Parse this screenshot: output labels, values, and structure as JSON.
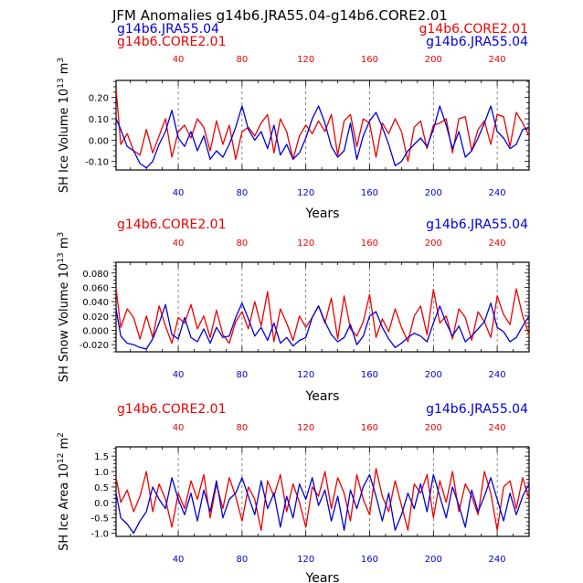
{
  "title": "JFM Anomalies g14b6.JRA55.04-g14b6.CORE2.01",
  "colors": {
    "core": "#ee0000",
    "jra": "#0000dd",
    "axis": "#000000",
    "grid": "#555555"
  },
  "legend": {
    "core_label": "g14b6.CORE2.01",
    "jra_label": "g14b6.JRA55.04"
  },
  "chart_data": [
    {
      "type": "line",
      "title": "SH Ice Volume",
      "ylabel": "SH Ice Volume",
      "ylabel_power": "13",
      "ylabel_unit": "m",
      "ylabel_unit_power": "3",
      "xlabel": "Years",
      "xlim": [
        1,
        260
      ],
      "ylim": [
        -0.14,
        0.28
      ],
      "yticks": [
        -0.1,
        0,
        0.1,
        0.2
      ],
      "ytick_labels": [
        "-0.10",
        "0.00",
        "0.10",
        "0.20"
      ],
      "xticks": [
        40,
        80,
        120,
        160,
        200,
        240
      ],
      "xtick_labels": [
        "40",
        "80",
        "120",
        "160",
        "200",
        "240"
      ],
      "top_tick_labels": [
        "40",
        "80",
        "120",
        "160",
        "200",
        "240"
      ],
      "bottom_tick_labels": [
        "40",
        "80",
        "120",
        "160",
        "200",
        "240"
      ],
      "top_axis_color": "core",
      "bottom_axis_color": "jra",
      "legend_left": "jra_label",
      "legend_left_second": "core_label",
      "legend_right": "core_label",
      "legend_right_second": "jra_label",
      "series": [
        {
          "name": "g14b6.CORE2.01",
          "color": "core",
          "x": [
            1,
            4,
            8,
            12,
            16,
            20,
            24,
            28,
            32,
            36,
            40,
            44,
            48,
            52,
            56,
            60,
            64,
            68,
            72,
            76,
            80,
            84,
            88,
            92,
            96,
            100,
            104,
            108,
            112,
            116,
            120,
            124,
            128,
            132,
            136,
            140,
            144,
            148,
            152,
            156,
            160,
            164,
            168,
            172,
            176,
            180,
            184,
            188,
            192,
            196,
            200,
            204,
            208,
            212,
            216,
            220,
            224,
            228,
            232,
            236,
            240,
            244,
            248,
            252,
            256,
            260
          ],
          "values": [
            0.24,
            -0.02,
            0.03,
            -0.05,
            -0.07,
            0.05,
            -0.06,
            0.02,
            0.1,
            -0.08,
            0.04,
            0.07,
            0.01,
            0.1,
            0.06,
            -0.05,
            0.09,
            -0.02,
            0.07,
            -0.09,
            0.04,
            0.06,
            0.02,
            0.08,
            0.12,
            -0.06,
            0.1,
            0.04,
            -0.09,
            0.02,
            0.07,
            0.03,
            0.09,
            0.04,
            0.12,
            -0.07,
            0.09,
            0.12,
            -0.03,
            0.1,
            0.08,
            -0.08,
            0.08,
            0.03,
            0.1,
            0.04,
            -0.1,
            0.06,
            0.09,
            -0.04,
            0.07,
            0.08,
            0.1,
            -0.06,
            0.1,
            0.11,
            -0.05,
            0.05,
            0.09,
            -0.02,
            0.12,
            0.11,
            -0.03,
            0.13,
            0.08,
            0.02
          ]
        },
        {
          "name": "g14b6.JRA55.04",
          "color": "jra",
          "x": [
            1,
            4,
            8,
            12,
            16,
            20,
            24,
            28,
            32,
            36,
            40,
            44,
            48,
            52,
            56,
            60,
            64,
            68,
            72,
            76,
            80,
            84,
            88,
            92,
            96,
            100,
            104,
            108,
            112,
            116,
            120,
            124,
            128,
            132,
            136,
            140,
            144,
            148,
            152,
            156,
            160,
            164,
            168,
            172,
            176,
            180,
            184,
            188,
            192,
            196,
            200,
            204,
            208,
            212,
            216,
            220,
            224,
            228,
            232,
            236,
            240,
            244,
            248,
            252,
            256,
            260
          ],
          "values": [
            0.1,
            0.05,
            -0.03,
            -0.05,
            -0.11,
            -0.13,
            -0.1,
            -0.02,
            0.04,
            0.14,
            0.01,
            -0.03,
            0.04,
            -0.05,
            0.02,
            -0.09,
            -0.05,
            -0.08,
            -0.02,
            0.06,
            0.16,
            0.05,
            0.0,
            0.04,
            -0.04,
            0.07,
            -0.07,
            -0.02,
            -0.09,
            -0.06,
            0.01,
            0.1,
            0.16,
            0.08,
            -0.03,
            -0.08,
            -0.05,
            0.08,
            -0.09,
            0.02,
            0.09,
            0.13,
            0.06,
            -0.02,
            -0.12,
            -0.1,
            -0.05,
            -0.02,
            0.01,
            -0.03,
            0.05,
            0.16,
            0.07,
            -0.04,
            0.04,
            -0.08,
            -0.05,
            0.01,
            0.08,
            0.16,
            0.04,
            0.01,
            -0.04,
            -0.02,
            0.05,
            0.06
          ]
        }
      ]
    },
    {
      "type": "line",
      "title": "SH Snow Volume",
      "ylabel": "SH Snow Volume",
      "ylabel_power": "13",
      "ylabel_unit": "m",
      "ylabel_unit_power": "3",
      "xlabel": "Years",
      "xlim": [
        1,
        260
      ],
      "ylim": [
        -0.03,
        0.095
      ],
      "yticks": [
        -0.02,
        0,
        0.02,
        0.04,
        0.06,
        0.08
      ],
      "ytick_labels": [
        "-0.020",
        "0.000",
        "0.020",
        "0.040",
        "0.060",
        "0.080"
      ],
      "xticks": [
        40,
        80,
        120,
        160,
        200,
        240
      ],
      "xtick_labels": [
        "40",
        "80",
        "120",
        "160",
        "200",
        "240"
      ],
      "top_tick_labels": [
        "40",
        "80",
        "120",
        "160",
        "200",
        "240"
      ],
      "bottom_tick_labels": [
        "40",
        "80",
        "120",
        "160",
        "200",
        "240"
      ],
      "top_axis_color": "core",
      "bottom_axis_color": "jra",
      "legend_left": "core_label",
      "legend_right": "jra_label",
      "series": [
        {
          "name": "g14b6.CORE2.01",
          "color": "core",
          "x": [
            1,
            4,
            8,
            12,
            16,
            20,
            24,
            28,
            32,
            36,
            40,
            44,
            48,
            52,
            56,
            60,
            64,
            68,
            72,
            76,
            80,
            84,
            88,
            92,
            96,
            100,
            104,
            108,
            112,
            116,
            120,
            124,
            128,
            132,
            136,
            140,
            144,
            148,
            152,
            156,
            160,
            164,
            168,
            172,
            176,
            180,
            184,
            188,
            192,
            196,
            200,
            204,
            208,
            212,
            216,
            220,
            224,
            228,
            232,
            236,
            240,
            244,
            248,
            252,
            256,
            260
          ],
          "values": [
            0.058,
            0.004,
            0.03,
            0.018,
            -0.012,
            0.02,
            -0.01,
            0.034,
            0.006,
            -0.018,
            0.018,
            0.01,
            0.036,
            0.002,
            0.02,
            -0.01,
            0.028,
            -0.006,
            -0.018,
            0.012,
            0.026,
            0.002,
            0.04,
            0.006,
            0.054,
            -0.016,
            0.03,
            0.01,
            -0.014,
            0.02,
            0.004,
            0.018,
            0.034,
            0.01,
            0.045,
            -0.012,
            0.048,
            0.002,
            -0.008,
            0.012,
            0.05,
            -0.01,
            0.016,
            -0.002,
            0.03,
            0.004,
            -0.016,
            0.02,
            0.034,
            -0.006,
            0.057,
            0.01,
            0.02,
            -0.012,
            0.03,
            0.018,
            -0.014,
            0.026,
            0.012,
            -0.01,
            0.048,
            0.022,
            0.008,
            0.058,
            0.02,
            -0.006
          ]
        },
        {
          "name": "g14b6.JRA55.04",
          "color": "jra",
          "x": [
            1,
            4,
            8,
            12,
            16,
            20,
            24,
            28,
            32,
            36,
            40,
            44,
            48,
            52,
            56,
            60,
            64,
            68,
            72,
            76,
            80,
            84,
            88,
            92,
            96,
            100,
            104,
            108,
            112,
            116,
            120,
            124,
            128,
            132,
            136,
            140,
            144,
            148,
            152,
            156,
            160,
            164,
            168,
            172,
            176,
            180,
            184,
            188,
            192,
            196,
            200,
            204,
            208,
            212,
            216,
            220,
            224,
            228,
            232,
            236,
            240,
            244,
            248,
            252,
            256,
            260
          ],
          "values": [
            0.03,
            -0.008,
            -0.018,
            -0.02,
            -0.024,
            -0.026,
            -0.012,
            0.01,
            0.036,
            -0.006,
            -0.012,
            0.018,
            -0.01,
            -0.016,
            0.002,
            -0.018,
            0.004,
            -0.01,
            -0.008,
            0.018,
            0.038,
            0.016,
            -0.008,
            0.004,
            -0.014,
            0.01,
            -0.018,
            -0.01,
            -0.022,
            -0.014,
            -0.01,
            0.018,
            0.034,
            0.012,
            -0.006,
            -0.016,
            -0.01,
            0.008,
            -0.02,
            -0.008,
            0.02,
            0.026,
            0.004,
            -0.012,
            -0.024,
            -0.018,
            -0.01,
            -0.004,
            -0.008,
            -0.016,
            0.01,
            0.034,
            0.01,
            -0.008,
            0.006,
            -0.016,
            -0.008,
            0.002,
            0.012,
            0.038,
            0.004,
            -0.002,
            -0.016,
            -0.01,
            0.006,
            0.02
          ]
        }
      ]
    },
    {
      "type": "line",
      "title": "SH Ice Area",
      "ylabel": "SH Ice Area",
      "ylabel_power": "12",
      "ylabel_unit": "m",
      "ylabel_unit_power": "2",
      "xlabel": "Years",
      "xlim": [
        1,
        260
      ],
      "ylim": [
        -1.1,
        1.8
      ],
      "yticks": [
        -1.0,
        -0.5,
        0,
        0.5,
        1.0,
        1.5
      ],
      "ytick_labels": [
        "-1.0",
        "-0.5",
        "0.0",
        "0.5",
        "1.0",
        "1.5"
      ],
      "xticks": [
        40,
        80,
        120,
        160,
        200,
        240
      ],
      "xtick_labels": [
        "40",
        "80",
        "120",
        "160",
        "200",
        "240"
      ],
      "top_tick_labels": [
        "40",
        "80",
        "120",
        "160",
        "200",
        "240"
      ],
      "bottom_tick_labels": [
        "40",
        "80",
        "120",
        "160",
        "200",
        "240"
      ],
      "top_axis_color": "core",
      "bottom_axis_color": "jra",
      "legend_left": "core_label",
      "legend_right": "jra_label",
      "series": [
        {
          "name": "g14b6.CORE2.01",
          "color": "core",
          "x": [
            1,
            4,
            8,
            12,
            16,
            20,
            24,
            28,
            32,
            36,
            40,
            44,
            48,
            52,
            56,
            60,
            64,
            68,
            72,
            76,
            80,
            84,
            88,
            92,
            96,
            100,
            104,
            108,
            112,
            116,
            120,
            124,
            128,
            132,
            136,
            140,
            144,
            148,
            152,
            156,
            160,
            164,
            168,
            172,
            176,
            180,
            184,
            188,
            192,
            196,
            200,
            204,
            208,
            212,
            216,
            220,
            224,
            228,
            232,
            236,
            240,
            244,
            248,
            252,
            256,
            260
          ],
          "values": [
            0.8,
            0.0,
            0.4,
            -0.3,
            0.2,
            1.0,
            -0.3,
            0.6,
            0.1,
            -0.8,
            0.3,
            -0.2,
            0.7,
            0.1,
            0.9,
            -0.5,
            0.6,
            -0.2,
            0.8,
            0.2,
            -0.6,
            0.5,
            0.1,
            -0.9,
            0.7,
            0.2,
            0.9,
            -0.3,
            0.6,
            0.0,
            -0.8,
            0.5,
            0.2,
            1.0,
            -0.2,
            0.8,
            0.3,
            -0.6,
            0.9,
            0.1,
            -0.4,
            1.1,
            0.2,
            -0.3,
            0.7,
            -0.1,
            -0.9,
            0.6,
            0.3,
            0.9,
            -0.5,
            0.7,
            0.0,
            1.0,
            -0.3,
            0.6,
            0.2,
            -0.4,
            1.0,
            0.3,
            -0.9,
            0.5,
            0.7,
            -0.2,
            0.8,
            0.1
          ]
        },
        {
          "name": "g14b6.JRA55.04",
          "color": "jra",
          "x": [
            1,
            4,
            8,
            12,
            16,
            20,
            24,
            28,
            32,
            36,
            40,
            44,
            48,
            52,
            56,
            60,
            64,
            68,
            72,
            76,
            80,
            84,
            88,
            92,
            96,
            100,
            104,
            108,
            112,
            116,
            120,
            124,
            128,
            132,
            136,
            140,
            144,
            148,
            152,
            156,
            160,
            164,
            168,
            172,
            176,
            180,
            184,
            188,
            192,
            196,
            200,
            204,
            208,
            212,
            216,
            220,
            224,
            228,
            232,
            236,
            240,
            244,
            248,
            252,
            256,
            260
          ],
          "values": [
            0.3,
            -0.5,
            -0.7,
            -1.0,
            -0.6,
            -0.3,
            0.5,
            0.1,
            -0.2,
            0.8,
            0.1,
            -0.4,
            0.3,
            -0.6,
            0.4,
            -0.3,
            0.7,
            -0.5,
            0.1,
            0.3,
            0.8,
            0.2,
            -0.4,
            0.7,
            -0.2,
            0.3,
            -0.8,
            0.2,
            -0.5,
            0.6,
            0.1,
            0.8,
            -0.1,
            0.4,
            -0.6,
            0.2,
            -0.9,
            0.4,
            -0.2,
            0.5,
            0.9,
            0.2,
            -0.6,
            0.3,
            -0.9,
            -0.4,
            0.3,
            -0.2,
            0.6,
            -0.3,
            0.9,
            0.2,
            -0.5,
            0.5,
            -0.1,
            -0.8,
            0.4,
            -0.3,
            0.2,
            0.8,
            0.1,
            -0.6,
            0.3,
            -0.4,
            0.2,
            0.6
          ]
        }
      ]
    }
  ]
}
